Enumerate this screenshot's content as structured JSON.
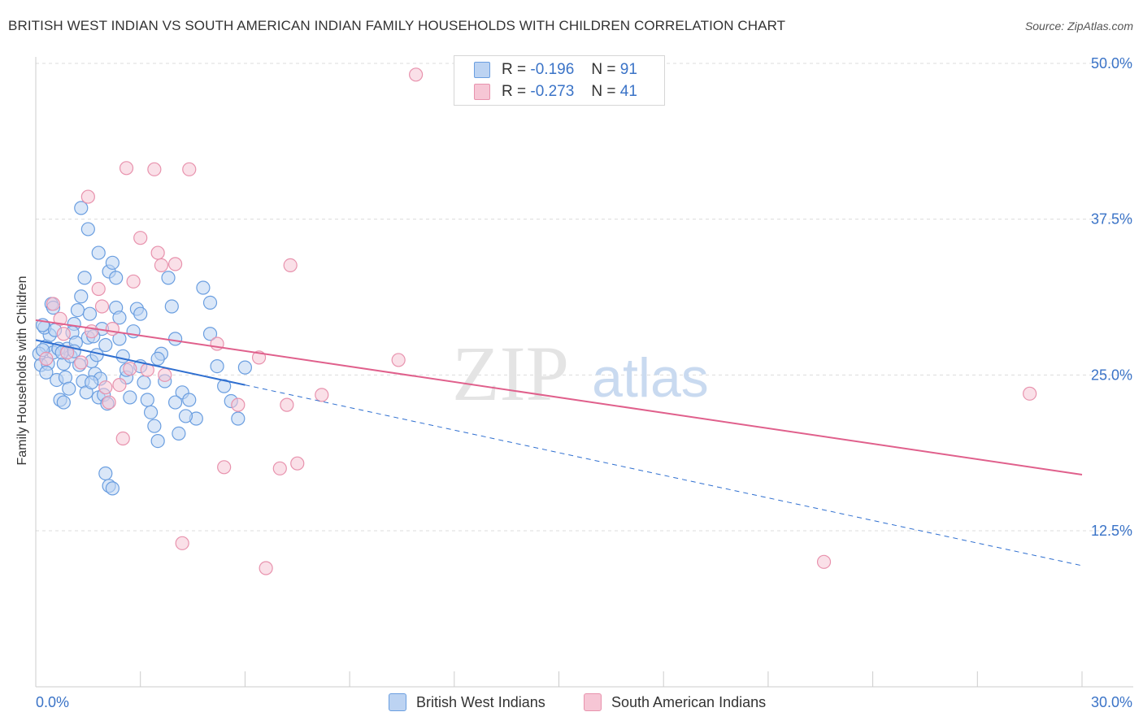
{
  "title": "BRITISH WEST INDIAN VS SOUTH AMERICAN INDIAN FAMILY HOUSEHOLDS WITH CHILDREN CORRELATION CHART",
  "source": "Source: ZipAtlas.com",
  "watermark": {
    "zip": "ZIP",
    "atlas": "atlas"
  },
  "stats": [
    {
      "r_label": "R =",
      "r_value": "-0.196",
      "n_label": "N =",
      "n_value": "91"
    },
    {
      "r_label": "R =",
      "r_value": "-0.273",
      "n_label": "N =",
      "n_value": "41"
    }
  ],
  "legend": [
    {
      "label": "British West Indians"
    },
    {
      "label": "South American Indians"
    }
  ],
  "chart_data": {
    "type": "scatter",
    "title": "BRITISH WEST INDIAN VS SOUTH AMERICAN INDIAN FAMILY HOUSEHOLDS WITH CHILDREN CORRELATION CHART",
    "xlabel": "",
    "ylabel": "Family Households with Children",
    "xlim": [
      0,
      30
    ],
    "ylim": [
      0,
      52
    ],
    "x_tick_labels": [
      "0.0%",
      "30.0%"
    ],
    "y_tick_labels": [
      "12.5%",
      "25.0%",
      "37.5%",
      "50.0%"
    ],
    "y_ticks": [
      12.5,
      25.0,
      37.5,
      50.0
    ],
    "grid": true,
    "series": [
      {
        "name": "British West Indians",
        "color": "#6a9ee0",
        "fill": "#bcd3f2",
        "line_color": "#2f6fd0",
        "trend": {
          "x": [
            0,
            6.0
          ],
          "y": [
            27.8,
            24.2
          ]
        },
        "trend_ext": {
          "x": [
            6.0,
            30.0
          ],
          "y": [
            24.2,
            9.7
          ]
        },
        "points": [
          [
            0.3,
            27.3
          ],
          [
            0.4,
            28.2
          ],
          [
            0.5,
            26.8
          ],
          [
            0.6,
            24.6
          ],
          [
            0.7,
            23.0
          ],
          [
            0.8,
            25.9
          ],
          [
            0.9,
            27.1
          ],
          [
            1.0,
            26.5
          ],
          [
            1.1,
            29.1
          ],
          [
            1.2,
            30.2
          ],
          [
            1.3,
            31.3
          ],
          [
            1.4,
            32.8
          ],
          [
            1.5,
            28.0
          ],
          [
            1.6,
            26.1
          ],
          [
            1.7,
            25.1
          ],
          [
            1.8,
            23.2
          ],
          [
            1.9,
            28.7
          ],
          [
            2.0,
            27.4
          ],
          [
            2.1,
            33.3
          ],
          [
            2.2,
            34.0
          ],
          [
            2.3,
            30.4
          ],
          [
            2.4,
            27.9
          ],
          [
            2.5,
            26.5
          ],
          [
            2.6,
            24.8
          ],
          [
            2.7,
            23.2
          ],
          [
            2.8,
            28.5
          ],
          [
            2.9,
            30.3
          ],
          [
            3.0,
            25.7
          ],
          [
            3.1,
            24.4
          ],
          [
            3.2,
            23.0
          ],
          [
            3.3,
            22.0
          ],
          [
            3.4,
            20.9
          ],
          [
            3.5,
            19.7
          ],
          [
            3.6,
            26.7
          ],
          [
            3.7,
            24.5
          ],
          [
            3.8,
            32.8
          ],
          [
            3.9,
            30.5
          ],
          [
            4.0,
            27.9
          ],
          [
            4.1,
            20.3
          ],
          [
            4.2,
            23.6
          ],
          [
            4.4,
            23.0
          ],
          [
            4.6,
            21.5
          ],
          [
            4.8,
            32.0
          ],
          [
            5.0,
            30.8
          ],
          [
            5.2,
            25.7
          ],
          [
            5.4,
            24.1
          ],
          [
            5.6,
            22.9
          ],
          [
            5.8,
            21.5
          ],
          [
            6.0,
            25.6
          ],
          [
            1.3,
            38.4
          ],
          [
            1.5,
            36.7
          ],
          [
            1.8,
            34.8
          ],
          [
            2.3,
            32.8
          ],
          [
            2.6,
            25.4
          ],
          [
            2.0,
            17.1
          ],
          [
            2.1,
            16.1
          ],
          [
            2.2,
            15.9
          ],
          [
            4.0,
            22.8
          ],
          [
            0.1,
            26.7
          ],
          [
            0.2,
            27.0
          ],
          [
            0.15,
            25.8
          ],
          [
            0.25,
            28.8
          ],
          [
            0.35,
            25.9
          ],
          [
            0.45,
            30.7
          ],
          [
            0.55,
            28.6
          ],
          [
            0.65,
            27.1
          ],
          [
            0.75,
            26.8
          ],
          [
            0.85,
            24.8
          ],
          [
            0.95,
            23.9
          ],
          [
            1.05,
            28.4
          ],
          [
            1.15,
            27.6
          ],
          [
            1.25,
            25.8
          ],
          [
            1.35,
            24.5
          ],
          [
            1.45,
            23.6
          ],
          [
            1.55,
            29.9
          ],
          [
            1.65,
            28.1
          ],
          [
            1.75,
            26.6
          ],
          [
            1.85,
            24.7
          ],
          [
            1.95,
            23.4
          ],
          [
            2.05,
            22.7
          ],
          [
            0.5,
            30.4
          ],
          [
            1.1,
            26.9
          ],
          [
            0.3,
            25.2
          ],
          [
            0.8,
            22.8
          ],
          [
            1.6,
            24.4
          ],
          [
            2.4,
            29.6
          ],
          [
            3.0,
            29.9
          ],
          [
            3.5,
            26.3
          ],
          [
            4.3,
            21.7
          ],
          [
            5.0,
            28.3
          ],
          [
            0.2,
            29.0
          ]
        ]
      },
      {
        "name": "South American Indians",
        "color": "#e892ad",
        "fill": "#f6c6d5",
        "line_color": "#e0608c",
        "trend": {
          "x": [
            0,
            30.0
          ],
          "y": [
            29.4,
            17.0
          ]
        },
        "points": [
          [
            0.3,
            26.3
          ],
          [
            0.5,
            30.7
          ],
          [
            0.8,
            28.3
          ],
          [
            0.9,
            26.8
          ],
          [
            1.3,
            26.0
          ],
          [
            1.6,
            28.5
          ],
          [
            1.8,
            31.9
          ],
          [
            1.9,
            30.5
          ],
          [
            2.0,
            24.0
          ],
          [
            2.1,
            22.8
          ],
          [
            2.2,
            28.7
          ],
          [
            2.4,
            24.2
          ],
          [
            2.5,
            19.9
          ],
          [
            2.6,
            41.6
          ],
          [
            2.7,
            25.5
          ],
          [
            2.8,
            32.5
          ],
          [
            3.0,
            36.0
          ],
          [
            3.2,
            25.4
          ],
          [
            3.4,
            41.5
          ],
          [
            3.5,
            34.8
          ],
          [
            3.6,
            33.8
          ],
          [
            3.7,
            25.0
          ],
          [
            4.0,
            33.9
          ],
          [
            4.4,
            41.5
          ],
          [
            4.2,
            11.5
          ],
          [
            5.2,
            27.5
          ],
          [
            5.4,
            17.6
          ],
          [
            5.8,
            22.6
          ],
          [
            6.4,
            26.4
          ],
          [
            6.6,
            9.5
          ],
          [
            7.0,
            17.5
          ],
          [
            7.2,
            22.6
          ],
          [
            7.3,
            33.8
          ],
          [
            7.5,
            17.9
          ],
          [
            8.2,
            23.4
          ],
          [
            10.4,
            26.2
          ],
          [
            10.9,
            49.1
          ],
          [
            22.6,
            10.0
          ],
          [
            28.5,
            23.5
          ],
          [
            1.5,
            39.3
          ],
          [
            0.7,
            29.5
          ]
        ]
      }
    ]
  }
}
